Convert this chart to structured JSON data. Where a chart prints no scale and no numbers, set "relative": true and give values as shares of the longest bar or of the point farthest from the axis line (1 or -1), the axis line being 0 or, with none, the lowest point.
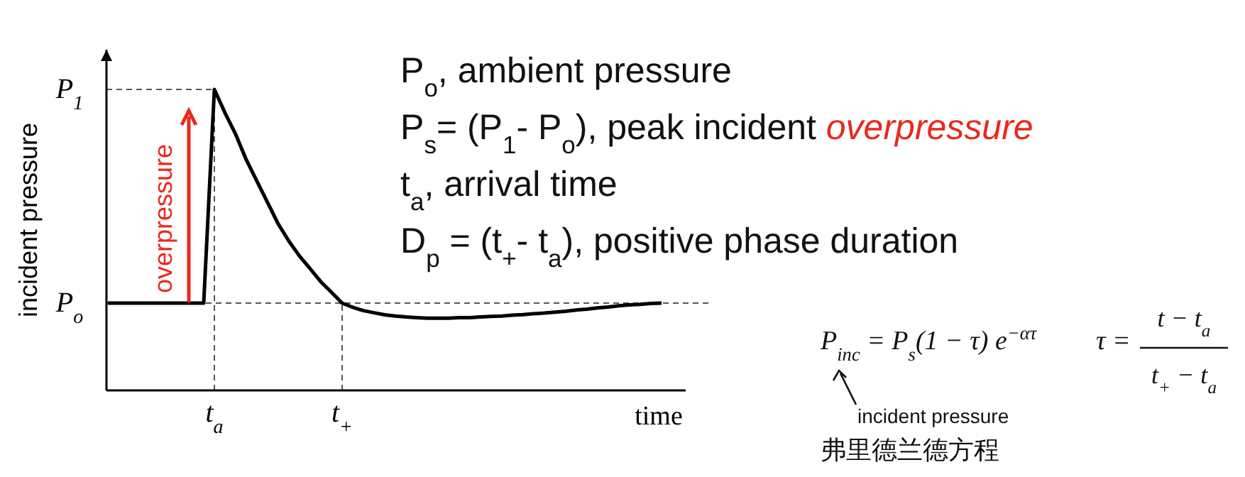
{
  "chart_data": {
    "type": "line",
    "xlabel": "time",
    "ylabel": "incident pressure",
    "relative": true,
    "marker": "none",
    "line_style": "solid",
    "categories": [
      null,
      null,
      null,
      null,
      null,
      null,
      null,
      null,
      null,
      null,
      "t$_{a}$",
      null,
      null,
      null,
      null,
      null,
      null,
      null,
      null,
      null,
      null,
      null,
      "t$_{+}$",
      null,
      null,
      null,
      null,
      null,
      null,
      null,
      null,
      null,
      null,
      null,
      null,
      null,
      null,
      null,
      null,
      null,
      null,
      null,
      null,
      null,
      null,
      null,
      null,
      null,
      null,
      null,
      null,
      null,
      null
    ],
    "series": [
      {
        "color": "#000000",
        "values": [
          0.29,
          0.29,
          0.29,
          0.29,
          0.29,
          0.29,
          0.29,
          0.29,
          0.29,
          0.29,
          1,
          0.922,
          0.851,
          0.766,
          0.695,
          0.624,
          0.553,
          0.496,
          0.446,
          0.404,
          0.361,
          0.326,
          0.29,
          0.276,
          0.265,
          0.258,
          0.251,
          0.247,
          0.244,
          0.242,
          0.24,
          0.24,
          0.24,
          0.242,
          0.242,
          0.244,
          0.246,
          0.247,
          0.25,
          0.252,
          0.255,
          0.257,
          0.26,
          0.263,
          0.267,
          0.27,
          0.274,
          0.277,
          0.281,
          0.284,
          0.286,
          0.289,
          0.29
        ]
      }
    ],
    "ref_lines": [
      {
        "axis": "y",
        "value": 1,
        "label": "P$_{1}$",
        "line_style": "dashed",
        "color": "#555555"
      },
      {
        "axis": "y",
        "value": 0.29,
        "label": "P$_{o}$",
        "line_style": "dashed",
        "color": "#555555"
      }
    ],
    "annotations": [
      "overpressure",
      "P$_{o}$, ambient pressure",
      "P$_{s}$= (P$_{1}$- P$_{o}$), peak incident ",
      "overpressure",
      "t$_{a}$, arrival time",
      "D$_{p}$ = (t$_{+}$- t$_{a}$), positive phase duration",
      "P$_{inc}$ = P$_{s}$(1 − τ) e$^{−ατ}$",
      "τ =",
      "t − t$_{a}$",
      "t$_{+}$ − t$_{a}$",
      "incident pressure",
      "弗里德兰德方程"
    ]
  }
}
